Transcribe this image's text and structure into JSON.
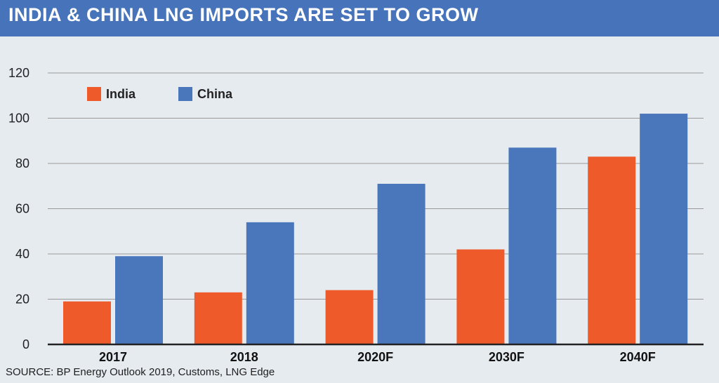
{
  "title": "INDIA & CHINA LNG IMPORTS ARE SET TO GROW",
  "source": "SOURCE: BP Energy Outlook 2019, Customs, LNG Edge",
  "colors": {
    "title_bar": "#4673b9",
    "background": "#e6ebf0",
    "india": "#ee5a2a",
    "china": "#4a76bb",
    "grid": "#999999",
    "axis": "#222222"
  },
  "chart_data": {
    "type": "bar",
    "title": "INDIA & CHINA LNG IMPORTS ARE SET TO GROW",
    "xlabel": "",
    "ylabel": "",
    "categories": [
      "2017",
      "2018",
      "2020F",
      "2030F",
      "2040F"
    ],
    "series": [
      {
        "name": "India",
        "color": "#ee5a2a",
        "values": [
          19,
          23,
          24,
          42,
          83
        ]
      },
      {
        "name": "China",
        "color": "#4a76bb",
        "values": [
          39,
          54,
          71,
          87,
          102
        ]
      }
    ],
    "ylim": [
      0,
      120
    ],
    "yticks": [
      0,
      20,
      40,
      60,
      80,
      100,
      120
    ],
    "grid": true,
    "legend_position": "top-left"
  }
}
